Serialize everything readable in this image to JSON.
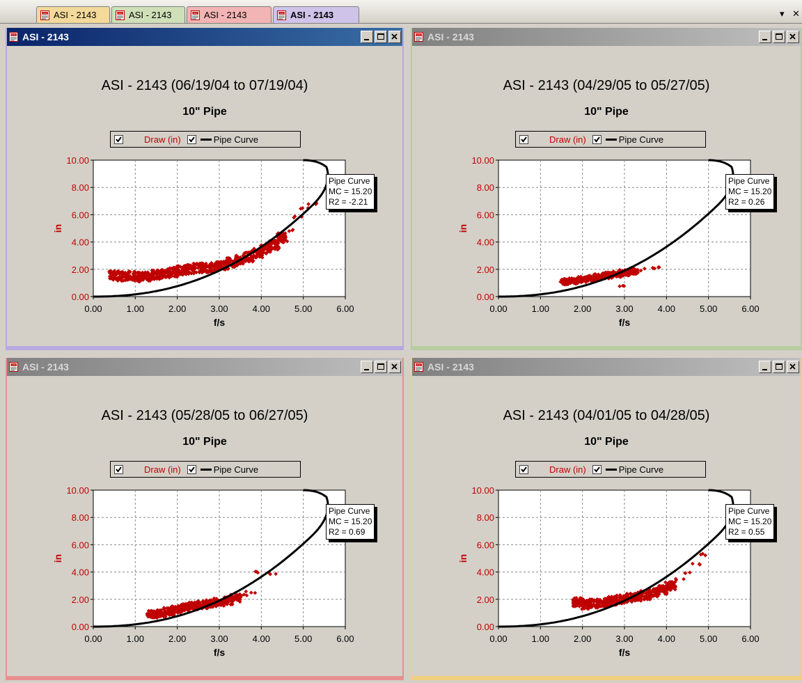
{
  "tabs": [
    {
      "label": "ASI - 2143",
      "color": "#f3d99a",
      "active": false
    },
    {
      "label": "ASI - 2143",
      "color": "#cfe0b8",
      "active": false
    },
    {
      "label": "ASI - 2143",
      "color": "#f2b4b4",
      "active": false
    },
    {
      "label": "ASI - 2143",
      "color": "#cfc3ea",
      "active": true
    }
  ],
  "strip_controls": {
    "menu": "▾",
    "close": "✕"
  },
  "windows": [
    {
      "title": "ASI - 2143",
      "active": true,
      "border_color": "#b8a8e0",
      "chart_title": "ASI - 2143 (06/19/04 to 07/19/04)",
      "chart_subtitle": "10\" Pipe",
      "legend": {
        "draw": "Draw (in)",
        "pipe": "Pipe Curve"
      },
      "stats": [
        "Pipe Curve",
        "MC = 15.20",
        "R2 = -2.21"
      ]
    },
    {
      "title": "ASI - 2143",
      "active": false,
      "border_color": "#b8cca0",
      "chart_title": "ASI - 2143 (04/29/05 to 05/27/05)",
      "chart_subtitle": "10\" Pipe",
      "legend": {
        "draw": "Draw (in)",
        "pipe": "Pipe Curve"
      },
      "stats": [
        "Pipe Curve",
        "MC = 15.20",
        "R2 = 0.26"
      ]
    },
    {
      "title": "ASI - 2143",
      "active": false,
      "border_color": "#e89090",
      "chart_title": "ASI - 2143 (05/28/05 to 06/27/05)",
      "chart_subtitle": "10\" Pipe",
      "legend": {
        "draw": "Draw (in)",
        "pipe": "Pipe Curve"
      },
      "stats": [
        "Pipe Curve",
        "MC = 15.20",
        "R2 = 0.69"
      ]
    },
    {
      "title": "ASI - 2143",
      "active": false,
      "border_color": "#f0d080",
      "chart_title": "ASI - 2143 (04/01/05 to 04/28/05)",
      "chart_subtitle": "10\" Pipe",
      "legend": {
        "draw": "Draw (in)",
        "pipe": "Pipe Curve"
      },
      "stats": [
        "Pipe Curve",
        "MC = 15.20",
        "R2 = 0.55"
      ]
    }
  ],
  "chart_data": [
    {
      "type": "scatter",
      "title": "ASI - 2143 (06/19/04 to 07/19/04)",
      "subtitle": "10\" Pipe",
      "xlabel": "f/s",
      "ylabel": "in",
      "xlim": [
        0,
        6
      ],
      "ylim": [
        0,
        10
      ],
      "xticks": [
        "0.00",
        "1.00",
        "2.00",
        "3.00",
        "4.00",
        "5.00",
        "6.00"
      ],
      "yticks": [
        "0.00",
        "2.00",
        "4.00",
        "6.00",
        "8.00",
        "10.00"
      ],
      "grid": true,
      "legend_position": "top-center",
      "colors": {
        "draw": "#c00000",
        "pipe": "#000000"
      },
      "series": [
        {
          "name": "Draw (in)",
          "kind": "scatter-cloud",
          "points": [
            [
              0.5,
              1.55
            ],
            [
              0.7,
              1.5
            ],
            [
              0.9,
              1.5
            ],
            [
              1.1,
              1.45
            ],
            [
              1.3,
              1.5
            ],
            [
              1.5,
              1.6
            ],
            [
              1.7,
              1.7
            ],
            [
              1.9,
              1.8
            ],
            [
              2.1,
              1.9
            ],
            [
              2.3,
              2.0
            ],
            [
              2.5,
              2.1
            ],
            [
              2.7,
              2.1
            ],
            [
              2.9,
              2.2
            ],
            [
              3.1,
              2.3
            ],
            [
              3.3,
              2.5
            ],
            [
              3.5,
              2.7
            ],
            [
              3.7,
              2.9
            ],
            [
              3.9,
              3.2
            ],
            [
              4.1,
              3.5
            ],
            [
              4.3,
              3.8
            ],
            [
              4.5,
              4.3
            ],
            [
              4.7,
              4.8
            ],
            [
              4.9,
              5.8
            ],
            [
              5.0,
              6.5
            ],
            [
              5.2,
              6.8
            ]
          ],
          "spread": 0.35
        },
        {
          "name": "Pipe Curve",
          "kind": "line"
        }
      ],
      "stats": {
        "MC": "15.20",
        "R2": "-2.21"
      }
    },
    {
      "type": "scatter",
      "title": "ASI - 2143 (04/29/05 to 05/27/05)",
      "subtitle": "10\" Pipe",
      "xlabel": "f/s",
      "ylabel": "in",
      "xlim": [
        0,
        6
      ],
      "ylim": [
        0,
        10
      ],
      "xticks": [
        "0.00",
        "1.00",
        "2.00",
        "3.00",
        "4.00",
        "5.00",
        "6.00"
      ],
      "yticks": [
        "0.00",
        "2.00",
        "4.00",
        "6.00",
        "8.00",
        "10.00"
      ],
      "grid": true,
      "legend_position": "top-center",
      "colors": {
        "draw": "#c00000",
        "pipe": "#000000"
      },
      "series": [
        {
          "name": "Draw (in)",
          "kind": "scatter-cloud",
          "points": [
            [
              1.6,
              1.1
            ],
            [
              1.8,
              1.15
            ],
            [
              2.0,
              1.25
            ],
            [
              2.2,
              1.35
            ],
            [
              2.4,
              1.45
            ],
            [
              2.6,
              1.55
            ],
            [
              2.8,
              1.65
            ],
            [
              3.0,
              1.75
            ],
            [
              3.2,
              1.85
            ],
            [
              3.4,
              1.95
            ],
            [
              3.6,
              2.05
            ],
            [
              3.8,
              2.1
            ],
            [
              3.0,
              0.8
            ]
          ],
          "spread": 0.22
        },
        {
          "name": "Pipe Curve",
          "kind": "line"
        }
      ],
      "stats": {
        "MC": "15.20",
        "R2": "0.26"
      }
    },
    {
      "type": "scatter",
      "title": "ASI - 2143 (05/28/05 to 06/27/05)",
      "subtitle": "10\" Pipe",
      "xlabel": "f/s",
      "ylabel": "in",
      "xlim": [
        0,
        6
      ],
      "ylim": [
        0,
        10
      ],
      "xticks": [
        "0.00",
        "1.00",
        "2.00",
        "3.00",
        "4.00",
        "5.00",
        "6.00"
      ],
      "yticks": [
        "0.00",
        "2.00",
        "4.00",
        "6.00",
        "8.00",
        "10.00"
      ],
      "grid": true,
      "legend_position": "top-center",
      "colors": {
        "draw": "#c00000",
        "pipe": "#000000"
      },
      "series": [
        {
          "name": "Draw (in)",
          "kind": "scatter-cloud",
          "points": [
            [
              1.4,
              0.9
            ],
            [
              1.6,
              1.0
            ],
            [
              1.8,
              1.1
            ],
            [
              2.0,
              1.25
            ],
            [
              2.2,
              1.4
            ],
            [
              2.4,
              1.5
            ],
            [
              2.6,
              1.6
            ],
            [
              2.8,
              1.7
            ],
            [
              3.0,
              1.8
            ],
            [
              3.2,
              1.9
            ],
            [
              3.4,
              2.1
            ],
            [
              3.6,
              2.3
            ],
            [
              3.75,
              2.5
            ],
            [
              3.9,
              4.0
            ],
            [
              4.3,
              3.9
            ]
          ],
          "spread": 0.28
        },
        {
          "name": "Pipe Curve",
          "kind": "line"
        }
      ],
      "stats": {
        "MC": "15.20",
        "R2": "0.69"
      }
    },
    {
      "type": "scatter",
      "title": "ASI - 2143 (04/01/05 to 04/28/05)",
      "subtitle": "10\" Pipe",
      "xlabel": "f/s",
      "ylabel": "in",
      "xlim": [
        0,
        6
      ],
      "ylim": [
        0,
        10
      ],
      "xticks": [
        "0.00",
        "1.00",
        "2.00",
        "3.00",
        "4.00",
        "5.00",
        "6.00"
      ],
      "yticks": [
        "0.00",
        "2.00",
        "4.00",
        "6.00",
        "8.00",
        "10.00"
      ],
      "grid": true,
      "legend_position": "top-center",
      "colors": {
        "draw": "#c00000",
        "pipe": "#000000"
      },
      "series": [
        {
          "name": "Draw (in)",
          "kind": "scatter-cloud",
          "points": [
            [
              1.9,
              1.8
            ],
            [
              2.1,
              1.6
            ],
            [
              2.3,
              1.7
            ],
            [
              2.5,
              1.8
            ],
            [
              2.7,
              1.9
            ],
            [
              2.9,
              2.0
            ],
            [
              3.1,
              2.1
            ],
            [
              3.3,
              2.2
            ],
            [
              3.5,
              2.3
            ],
            [
              3.7,
              2.5
            ],
            [
              3.9,
              2.7
            ],
            [
              4.1,
              3.0
            ],
            [
              4.3,
              3.5
            ],
            [
              4.5,
              4.0
            ],
            [
              4.7,
              4.6
            ],
            [
              4.9,
              5.3
            ]
          ],
          "spread": 0.32
        },
        {
          "name": "Pipe Curve",
          "kind": "line"
        }
      ],
      "stats": {
        "MC": "15.20",
        "R2": "0.55"
      }
    }
  ]
}
